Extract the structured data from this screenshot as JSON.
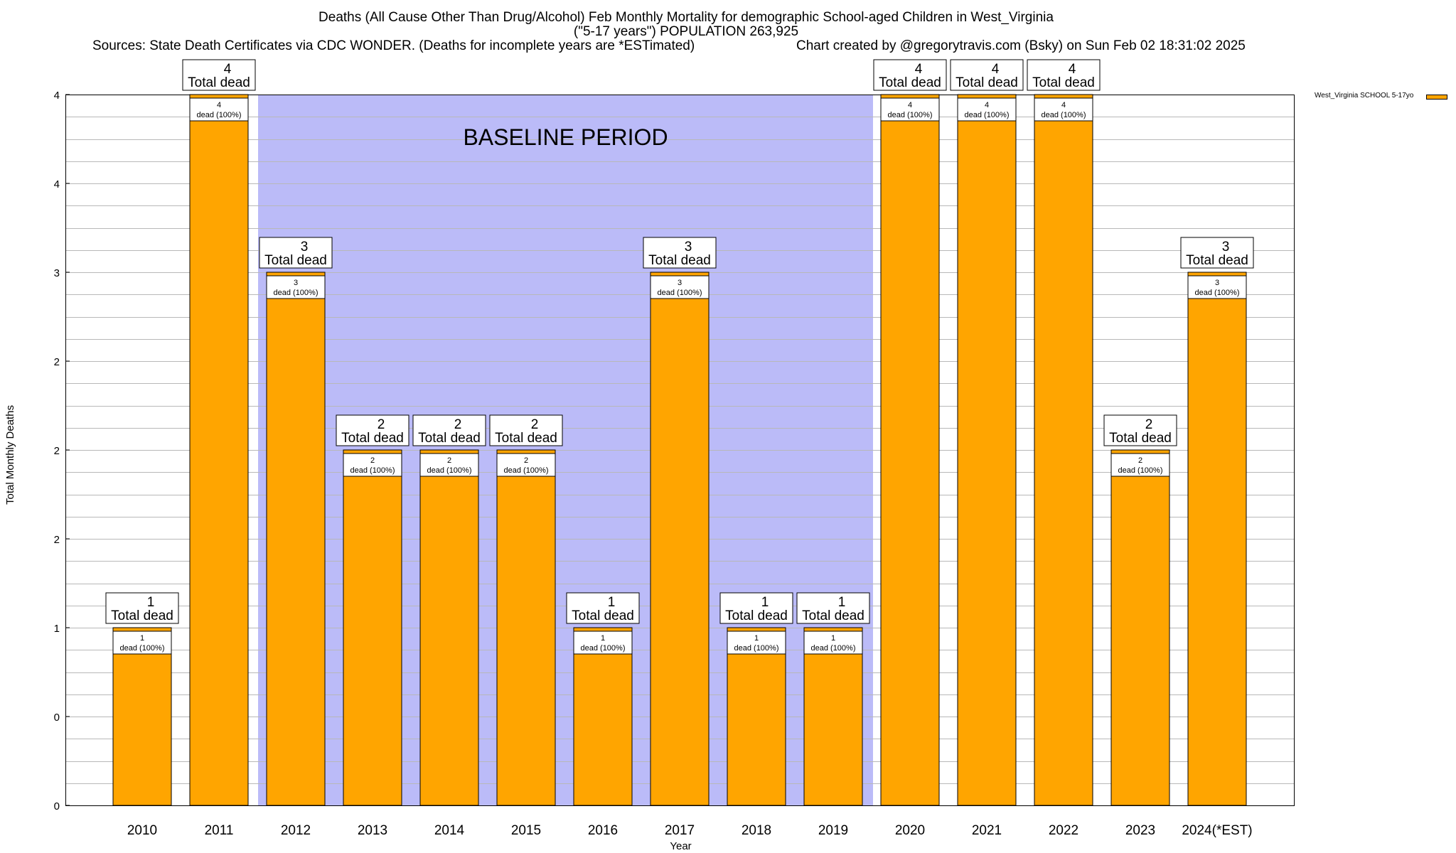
{
  "titles": {
    "line1": "Deaths (All Cause Other Than Drug/Alcohol) Feb Monthly Mortality for demographic School-aged Children in West_Virginia",
    "line2": "(\"5-17 years\") POPULATION 263,925",
    "line3": "Sources: State Death Certificates via CDC WONDER. (Deaths for incomplete years are *ESTimated)",
    "line4": "Chart created by @gregorytravis.com (Bsky) on Sun Feb 02 18:31:02 2025"
  },
  "chart_data": {
    "type": "bar",
    "xlabel": "Year",
    "ylabel": "Total Monthly Deaths",
    "ylim": [
      0,
      4
    ],
    "ytick_values": [
      0,
      0.5,
      1,
      1.5,
      2,
      2.5,
      3,
      3.5,
      4
    ],
    "ytick_labels": [
      "0",
      "0",
      "1",
      "2",
      "2",
      "2",
      "3",
      "4",
      "4"
    ],
    "categories": [
      "2010",
      "2011",
      "2012",
      "2013",
      "2014",
      "2015",
      "2016",
      "2017",
      "2018",
      "2019",
      "2020",
      "2021",
      "2022",
      "2023",
      "2024(*EST)"
    ],
    "series": [
      {
        "name": "West_Virginia SCHOOL 5-17yo",
        "color": "#ffa500",
        "values": [
          1,
          4,
          3,
          2,
          2,
          2,
          1,
          3,
          1,
          1,
          4,
          4,
          4,
          2,
          3
        ]
      }
    ],
    "total_label_suffix": "Total dead",
    "inner_label_suffix": "dead (100%)",
    "baseline": {
      "label": "BASELINE PERIOD",
      "start": "2012",
      "end": "2019",
      "color": "#bbbbf8"
    },
    "legend_position": "top-right",
    "grid": true
  }
}
